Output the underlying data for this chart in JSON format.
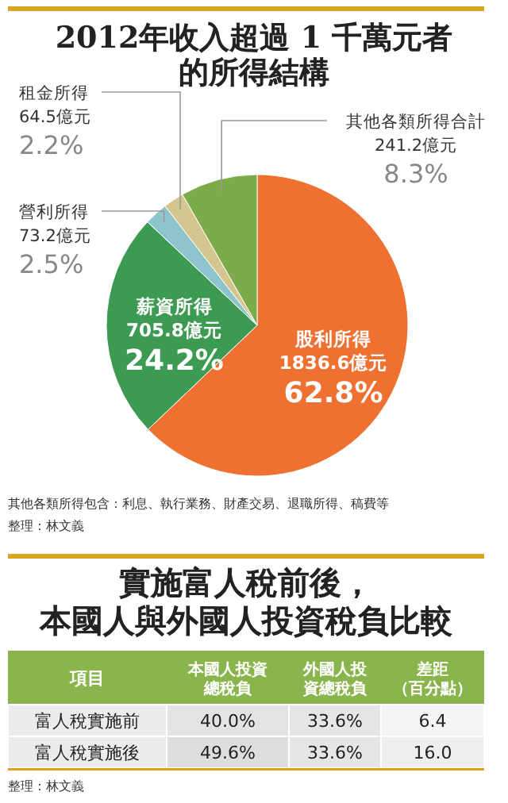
{
  "chart_data": [
    {
      "type": "pie",
      "title": "2012年收入超過 1 千萬元者的所得結構",
      "categories": [
        "股利所得",
        "薪資所得",
        "營利所得",
        "租金所得",
        "其他各類所得合計"
      ],
      "values": [
        1836.6,
        705.8,
        73.2,
        64.5,
        241.2
      ],
      "colors": [
        "#ef7132",
        "#3c9a52",
        "#8ec5cc",
        "#d5c690",
        "#7eab4a"
      ],
      "value_labels": [
        "1836.6億元\n62.8%",
        "705.8億元\n24.2%",
        "73.2億元\n2.5%",
        "64.5億元\n2.2%",
        "241.2億元\n8.3%"
      ],
      "annotations": [
        "其他各類所得包含：利息、執行業務、財產交易、退職所得、稿費等",
        "整理：林文義"
      ]
    },
    {
      "type": "heatmap",
      "title": "實施富人稅前後，本國人與外國人投資稅負比較",
      "ylabel": "項目",
      "categories": [
        "本國人投資總稅負",
        "外國人投資總稅負",
        "差距（百分點）"
      ],
      "y_categories": [
        "富人稅實施前",
        "富人稅實施後"
      ],
      "cells": [
        [
          40.0,
          33.6,
          6.4
        ],
        [
          49.6,
          33.6,
          16.0
        ]
      ],
      "cell_labels": [
        [
          "40.0%",
          "33.6%",
          "6.4"
        ],
        [
          "49.6%",
          "33.6%",
          "16.0"
        ]
      ],
      "annotations": [
        "整理：林文義"
      ]
    }
  ]
}
